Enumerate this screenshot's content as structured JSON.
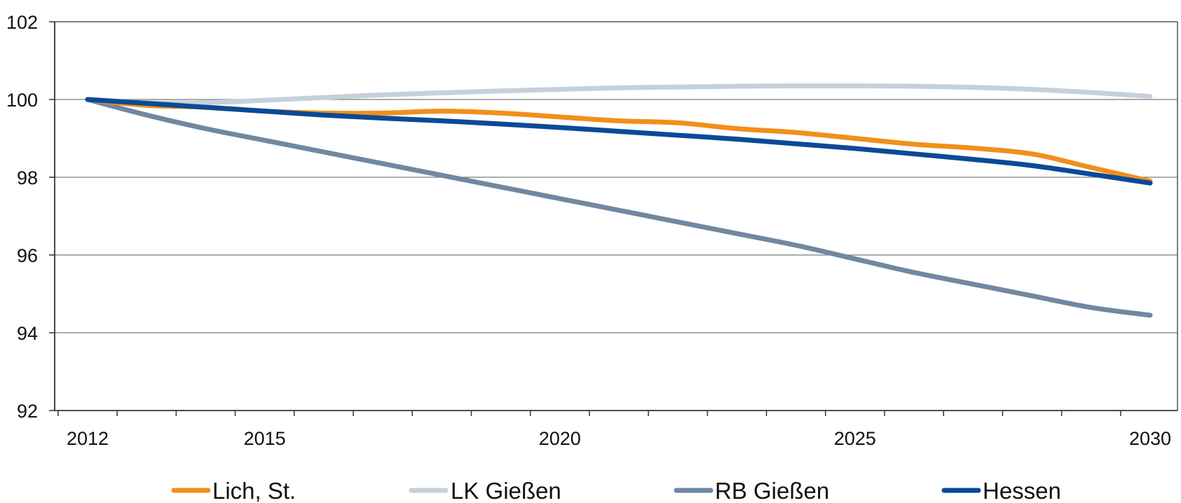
{
  "chart_data": {
    "type": "line",
    "title": "",
    "xlabel": "",
    "ylabel": "",
    "xlim": [
      2012,
      2030
    ],
    "ylim": [
      92,
      102
    ],
    "y_ticks": [
      92,
      94,
      96,
      98,
      100,
      102
    ],
    "x_tick_labels": [
      2012,
      2015,
      2020,
      2025,
      2030
    ],
    "grid": "horizontal",
    "legend_position": "bottom",
    "series": [
      {
        "name": "Lich, St.",
        "color": "#F0901C",
        "x": [
          2012,
          2013,
          2014,
          2015,
          2016,
          2017,
          2018,
          2019,
          2020,
          2021,
          2022,
          2023,
          2024,
          2025,
          2026,
          2027,
          2028,
          2029,
          2030
        ],
        "y": [
          100.0,
          99.85,
          99.8,
          99.7,
          99.65,
          99.65,
          99.7,
          99.65,
          99.55,
          99.45,
          99.4,
          99.25,
          99.15,
          99.0,
          98.85,
          98.75,
          98.6,
          98.25,
          97.9
        ]
      },
      {
        "name": "LK Gießen",
        "color": "#C5D0DB",
        "x": [
          2012,
          2013,
          2014,
          2015,
          2016,
          2017,
          2018,
          2019,
          2020,
          2021,
          2022,
          2023,
          2024,
          2025,
          2026,
          2027,
          2028,
          2029,
          2030
        ],
        "y": [
          100.0,
          99.92,
          99.92,
          99.98,
          100.05,
          100.12,
          100.17,
          100.22,
          100.26,
          100.3,
          100.32,
          100.34,
          100.35,
          100.35,
          100.34,
          100.31,
          100.26,
          100.18,
          100.08
        ]
      },
      {
        "name": "RB Gießen",
        "color": "#7088A0",
        "x": [
          2012,
          2013,
          2014,
          2015,
          2016,
          2017,
          2018,
          2019,
          2020,
          2021,
          2022,
          2023,
          2024,
          2025,
          2026,
          2027,
          2028,
          2029,
          2030
        ],
        "y": [
          100.0,
          99.6,
          99.25,
          98.95,
          98.65,
          98.35,
          98.05,
          97.75,
          97.45,
          97.15,
          96.85,
          96.55,
          96.25,
          95.9,
          95.55,
          95.25,
          94.95,
          94.65,
          94.45
        ]
      },
      {
        "name": "Hessen",
        "color": "#0A4A96",
        "x": [
          2012,
          2013,
          2014,
          2015,
          2016,
          2017,
          2018,
          2019,
          2020,
          2021,
          2022,
          2023,
          2024,
          2025,
          2026,
          2027,
          2028,
          2029,
          2030
        ],
        "y": [
          100.0,
          99.9,
          99.8,
          99.7,
          99.6,
          99.52,
          99.45,
          99.37,
          99.28,
          99.18,
          99.08,
          98.98,
          98.86,
          98.74,
          98.6,
          98.46,
          98.3,
          98.08,
          97.85
        ]
      }
    ]
  }
}
